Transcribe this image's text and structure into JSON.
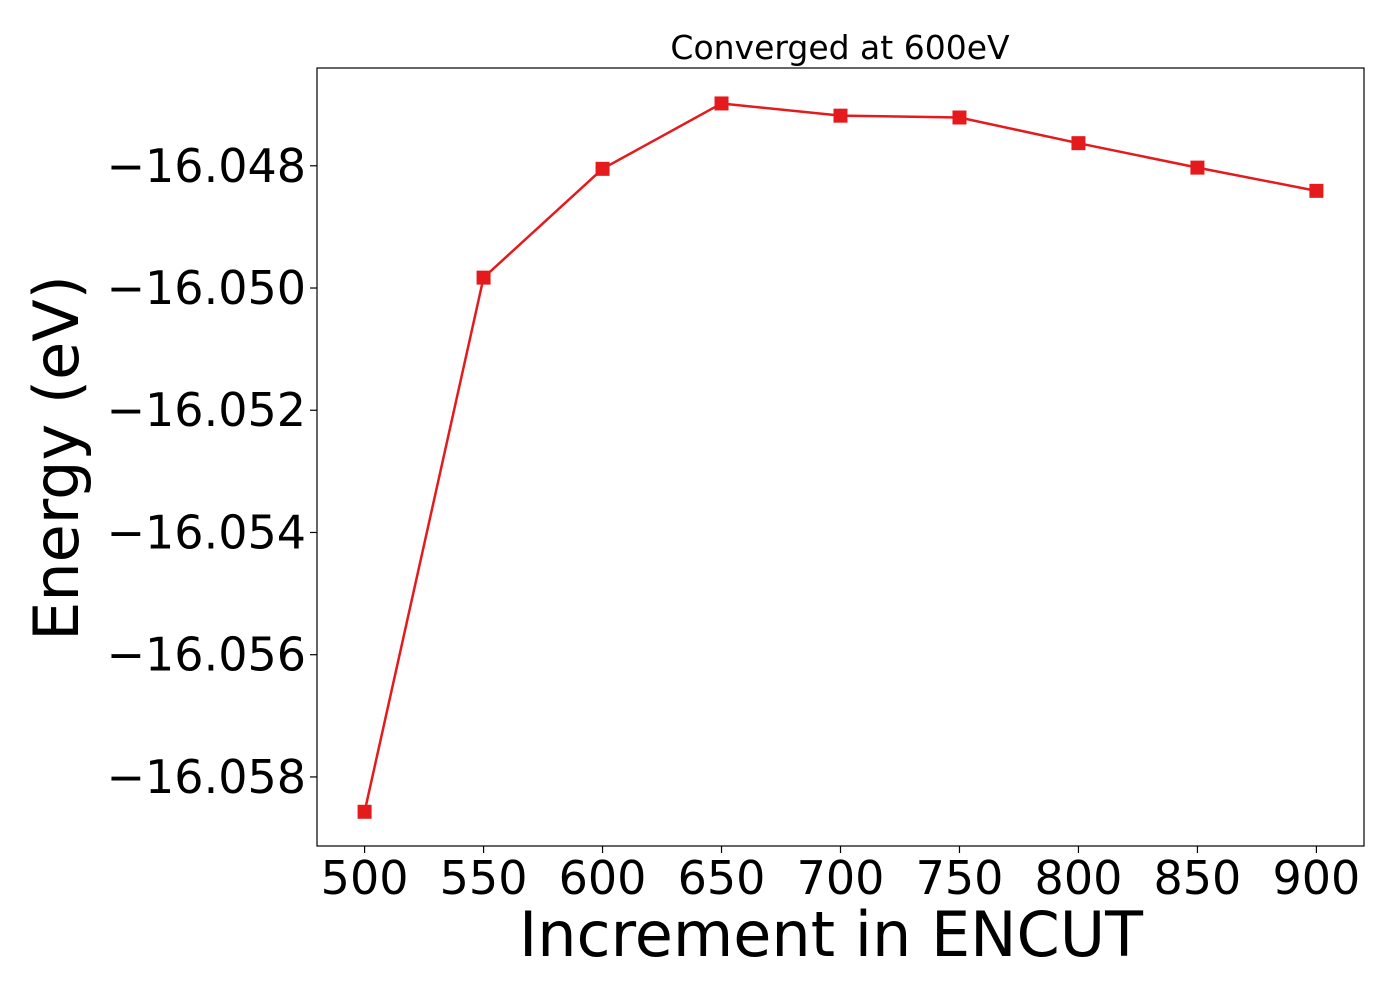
{
  "chart_data": {
    "type": "line",
    "title": "Converged at 600eV",
    "xlabel": "Increment in ENCUT",
    "ylabel": "Energy (eV)",
    "x": [
      500,
      550,
      600,
      650,
      700,
      750,
      800,
      850,
      900
    ],
    "series": [
      {
        "values": [
          -16.05857,
          -16.04983,
          -16.04805,
          -16.04698,
          -16.04718,
          -16.04721,
          -16.04763,
          -16.04803,
          -16.04841
        ],
        "color": "#e41a1c",
        "marker": "square"
      }
    ],
    "xticks": [
      500,
      550,
      600,
      650,
      700,
      750,
      800,
      850,
      900
    ],
    "xtick_labels": [
      "500",
      "550",
      "600",
      "650",
      "700",
      "750",
      "800",
      "850",
      "900"
    ],
    "yticks": [
      -16.048,
      -16.05,
      -16.052,
      -16.054,
      -16.056,
      -16.058
    ],
    "ytick_labels": [
      "−16.048",
      "−16.050",
      "−16.052",
      "−16.054",
      "−16.056",
      "−16.058"
    ],
    "xlim": [
      480,
      920
    ],
    "ylim": [
      -16.05913,
      -16.0464
    ],
    "grid": false,
    "legend": "none"
  }
}
